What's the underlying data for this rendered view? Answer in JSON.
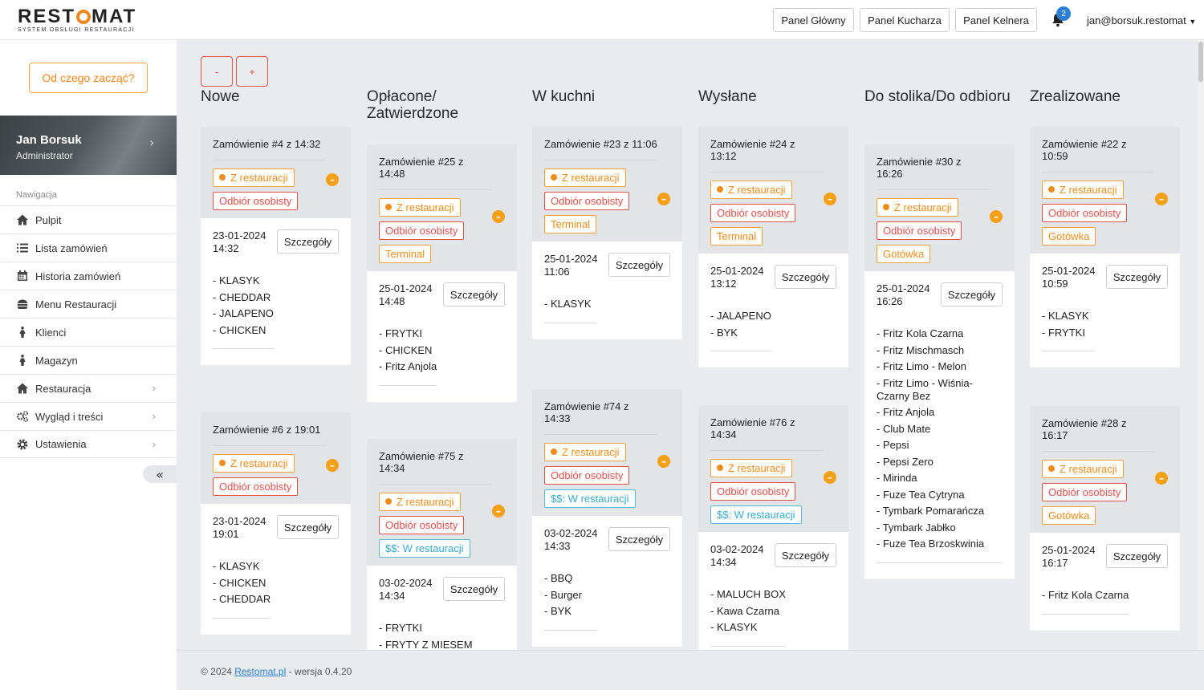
{
  "brand": {
    "logo_pre": "REST",
    "logo_post": "MAT",
    "subtitle": "SYSTEM OBSŁUGI RESTAURACJI",
    "accent": "#f0871c"
  },
  "topbar": {
    "buttons": [
      "Panel Główny",
      "Panel Kucharza",
      "Panel Kelnera"
    ],
    "notifications": "2",
    "user": "jan@borsuk.restomat"
  },
  "sidebar": {
    "start_button": "Od czego zacząć?",
    "profile": {
      "name": "Jan Borsuk",
      "role": "Administrator"
    },
    "nav_heading": "Nawigacja",
    "items": [
      {
        "label": "Pulpit",
        "icon": "home-icon",
        "chevron": false
      },
      {
        "label": "Lista zamówień",
        "icon": "list-icon",
        "chevron": false
      },
      {
        "label": "Historia zamówień",
        "icon": "calendar-icon",
        "chevron": false
      },
      {
        "label": "Menu Restauracji",
        "icon": "burger-icon",
        "chevron": false
      },
      {
        "label": "Klienci",
        "icon": "person-icon",
        "chevron": false
      },
      {
        "label": "Magazyn",
        "icon": "person-icon",
        "chevron": false
      },
      {
        "label": "Restauracja",
        "icon": "home-icon",
        "chevron": true
      },
      {
        "label": "Wygląd i treści",
        "icon": "gears-icon",
        "chevron": true
      },
      {
        "label": "Ustawienia",
        "icon": "gear-icon",
        "chevron": true
      }
    ]
  },
  "zoom": {
    "minus": "-",
    "plus": "+"
  },
  "detail_label": "Szczegóły",
  "columns": [
    {
      "title": "Nowe",
      "orders": [
        {
          "title": "Zamówienie #4 z 14:32",
          "tags": [
            {
              "text": "Z restauracji",
              "type": "orange",
              "dot": true
            },
            {
              "text": "Odbiór osobisty",
              "type": "red"
            }
          ],
          "date": "23-01-2024",
          "time": "14:32",
          "items": [
            "- KLASYK",
            "- CHEDDAR",
            "- JALAPENO",
            "- CHICKEN"
          ]
        },
        {
          "title": "Zamówienie #6 z 19:01",
          "tags": [
            {
              "text": "Z restauracji",
              "type": "orange",
              "dot": true
            },
            {
              "text": "Odbiór osobisty",
              "type": "red"
            }
          ],
          "date": "23-01-2024",
          "time": "19:01",
          "items": [
            "- KLASYK",
            "- CHICKEN",
            "- CHEDDAR"
          ]
        }
      ]
    },
    {
      "title": "Opłacone/ Zatwierdzone",
      "orders": [
        {
          "title": "Zamówienie #25 z 14:48",
          "tags": [
            {
              "text": "Z restauracji",
              "type": "orange",
              "dot": true
            },
            {
              "text": "Odbiór osobisty",
              "type": "red"
            },
            {
              "text": "Terminal",
              "type": "orange"
            }
          ],
          "date": "25-01-2024",
          "time": "14:48",
          "items": [
            "- FRYTKI",
            "- CHICKEN",
            "- Fritz Anjola"
          ]
        },
        {
          "title": "Zamówienie #75 z 14:34",
          "tags": [
            {
              "text": "Z restauracji",
              "type": "orange",
              "dot": true
            },
            {
              "text": "Odbiór osobisty",
              "type": "red"
            },
            {
              "text": "$$: W restauracji",
              "type": "blue"
            }
          ],
          "date": "03-02-2024",
          "time": "14:34",
          "items": [
            "- FRYTKI",
            "- FRYTY Z MIESEM"
          ]
        }
      ]
    },
    {
      "title": "W kuchni",
      "orders": [
        {
          "title": "Zamówienie #23 z 11:06",
          "tags": [
            {
              "text": "Z restauracji",
              "type": "orange",
              "dot": true
            },
            {
              "text": "Odbiór osobisty",
              "type": "red"
            },
            {
              "text": "Terminal",
              "type": "orange"
            }
          ],
          "date": "25-01-2024",
          "time": "11:06",
          "items": [
            "- KLASYK"
          ]
        },
        {
          "title": "Zamówienie #74 z 14:33",
          "tags": [
            {
              "text": "Z restauracji",
              "type": "orange",
              "dot": true
            },
            {
              "text": "Odbiór osobisty",
              "type": "red"
            },
            {
              "text": "$$: W restauracji",
              "type": "blue"
            }
          ],
          "date": "03-02-2024",
          "time": "14:33",
          "items": [
            "- BBQ",
            "- Burger",
            "- BYK"
          ]
        }
      ]
    },
    {
      "title": "Wysłane",
      "orders": [
        {
          "title": "Zamówienie #24 z 13:12",
          "tags": [
            {
              "text": "Z restauracji",
              "type": "orange",
              "dot": true
            },
            {
              "text": "Odbiór osobisty",
              "type": "red"
            },
            {
              "text": "Terminal",
              "type": "orange"
            }
          ],
          "date": "25-01-2024",
          "time": "13:12",
          "items": [
            "- JALAPENO",
            "- BYK"
          ]
        },
        {
          "title": "Zamówienie #76 z 14:34",
          "tags": [
            {
              "text": "Z restauracji",
              "type": "orange",
              "dot": true
            },
            {
              "text": "Odbiór osobisty",
              "type": "red"
            },
            {
              "text": "$$: W restauracji",
              "type": "blue"
            }
          ],
          "date": "03-02-2024",
          "time": "14:34",
          "items": [
            "- MALUCH BOX",
            "- Kawa Czarna",
            "- KLASYK"
          ]
        }
      ]
    },
    {
      "title": "Do stolika/Do odbioru",
      "orders": [
        {
          "title": "Zamówienie #30 z 16:26",
          "tags": [
            {
              "text": "Z restauracji",
              "type": "orange",
              "dot": true
            },
            {
              "text": "Odbiór osobisty",
              "type": "red"
            },
            {
              "text": "Gotówka",
              "type": "orange"
            }
          ],
          "date": "25-01-2024",
          "time": "16:26",
          "items": [
            "- Fritz Kola Czarna",
            "- Fritz Mischmasch",
            "- Fritz Limo - Melon",
            "- Fritz Limo - Wiśnia-Czarny Bez",
            "- Fritz Anjola",
            "- Club Mate",
            "- Pepsi",
            "- Pepsi Zero",
            "- Mirinda",
            "- Fuze Tea Cytryna",
            "- Tymbark Pomarańcza",
            "- Tymbark Jabłko",
            "- Fuze Tea Brzoskwinia"
          ]
        }
      ]
    },
    {
      "title": "Zrealizowane",
      "orders": [
        {
          "title": "Zamówienie #22 z 10:59",
          "tags": [
            {
              "text": "Z restauracji",
              "type": "orange",
              "dot": true
            },
            {
              "text": "Odbiór osobisty",
              "type": "red"
            },
            {
              "text": "Gotówka",
              "type": "orange"
            }
          ],
          "date": "25-01-2024",
          "time": "10:59",
          "items": [
            "- KLASYK",
            "- FRYTKI"
          ]
        },
        {
          "title": "Zamówienie #28 z 16:17",
          "tags": [
            {
              "text": "Z restauracji",
              "type": "orange",
              "dot": true
            },
            {
              "text": "Odbiór osobisty",
              "type": "red"
            },
            {
              "text": "Gotówka",
              "type": "orange"
            }
          ],
          "date": "25-01-2024",
          "time": "16:17",
          "items": [
            "- Fritz Kola Czarna"
          ]
        }
      ]
    }
  ],
  "footer": {
    "prefix": "© 2024 ",
    "link": "Restomat.pl",
    "suffix": " - wersja 0.4.20"
  }
}
